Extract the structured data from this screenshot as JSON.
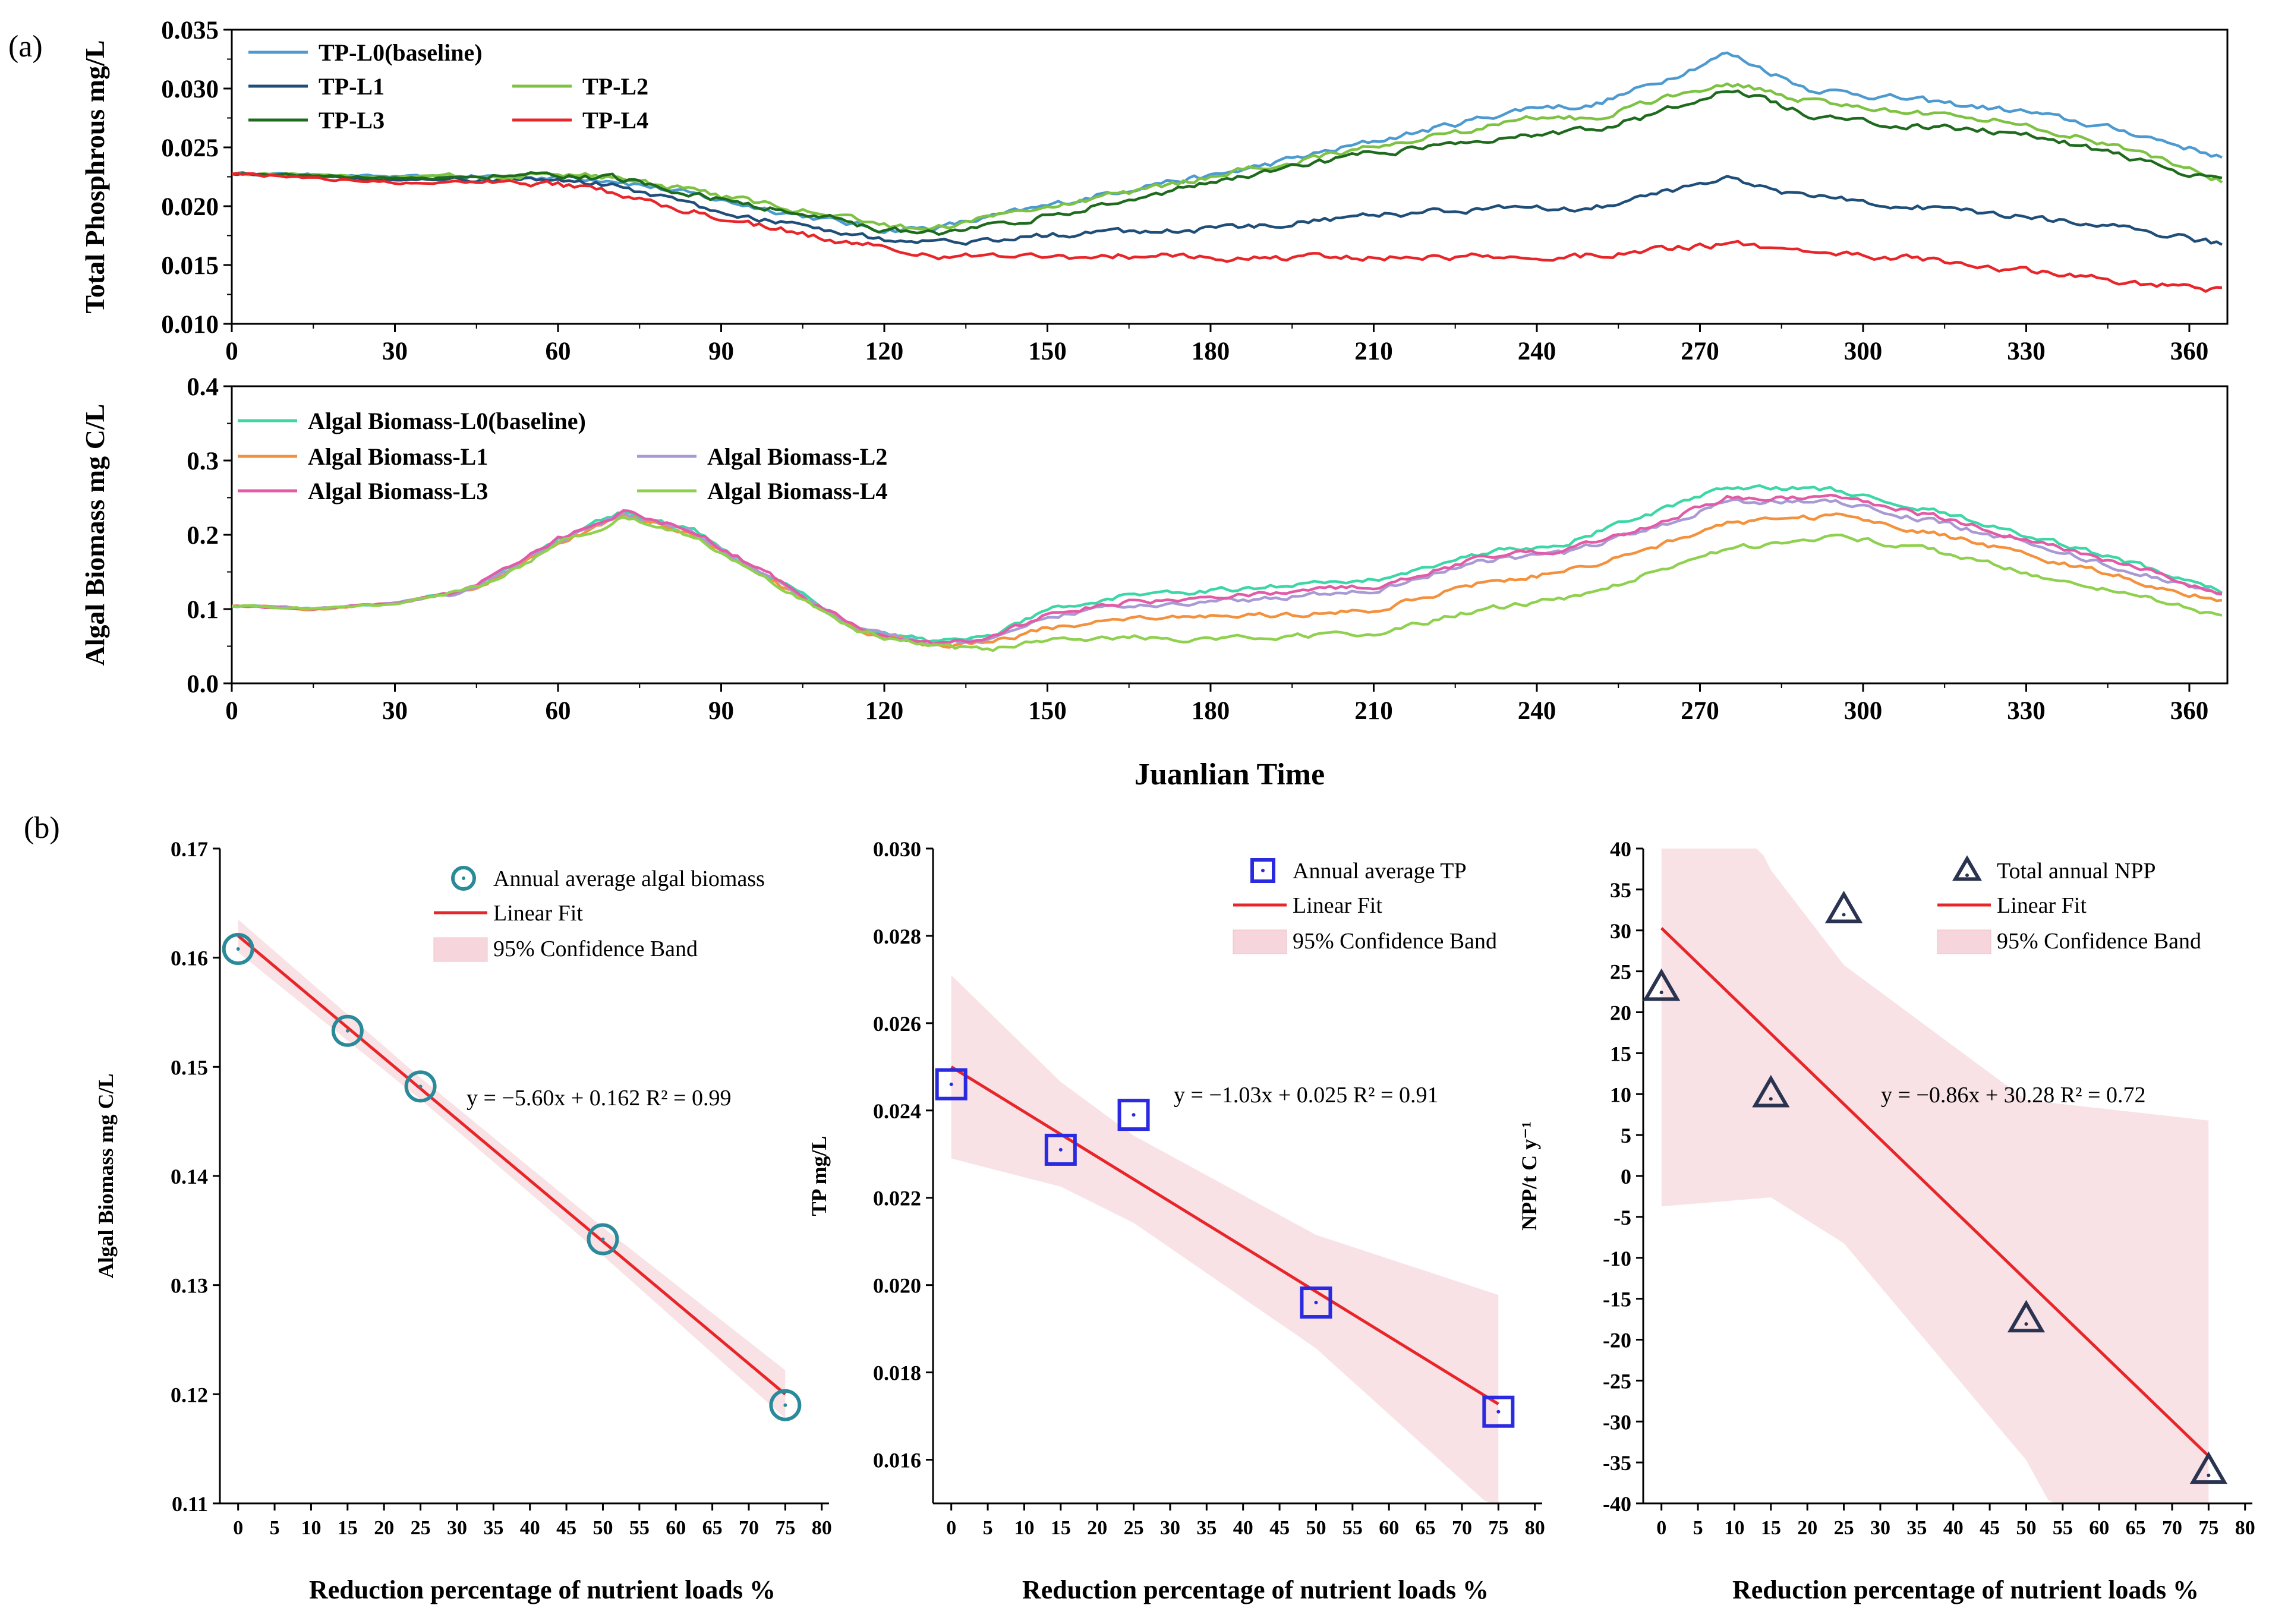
{
  "panel_labels": {
    "a": "(a)",
    "b": "(b)"
  },
  "chart_data": [
    {
      "id": "tp",
      "type": "line",
      "title": "",
      "xlabel": "",
      "ylabel": "Total Phosphrous mg/L",
      "xlim": [
        0,
        367
      ],
      "ylim": [
        0.01,
        0.035
      ],
      "xticks": [
        "0",
        "30",
        "60",
        "90",
        "120",
        "150",
        "180",
        "210",
        "240",
        "270",
        "300",
        "330",
        "360"
      ],
      "yticks": [
        "0.010",
        "0.015",
        "0.020",
        "0.025",
        "0.030",
        "0.035"
      ],
      "legend_position": "top-left",
      "series": [
        {
          "name": "TP-L0(baseline)",
          "color": "#4d9ad0",
          "x": [
            0,
            30,
            60,
            70,
            90,
            110,
            120,
            130,
            150,
            170,
            180,
            210,
            240,
            250,
            262,
            275,
            290,
            310,
            330,
            350,
            366
          ],
          "y": [
            0.0228,
            0.0225,
            0.0225,
            0.0223,
            0.0205,
            0.0188,
            0.018,
            0.0182,
            0.02,
            0.022,
            0.0225,
            0.0255,
            0.0285,
            0.0285,
            0.0305,
            0.033,
            0.03,
            0.029,
            0.028,
            0.0262,
            0.0242
          ]
        },
        {
          "name": "TP-L1",
          "color": "#1f4e79",
          "x": [
            0,
            30,
            60,
            70,
            90,
            110,
            120,
            130,
            150,
            170,
            180,
            210,
            240,
            250,
            262,
            275,
            290,
            310,
            330,
            350,
            366
          ],
          "y": [
            0.0228,
            0.0223,
            0.0222,
            0.0218,
            0.0195,
            0.018,
            0.0172,
            0.0168,
            0.0175,
            0.018,
            0.018,
            0.0192,
            0.02,
            0.0198,
            0.021,
            0.0222,
            0.0208,
            0.02,
            0.019,
            0.018,
            0.0168
          ]
        },
        {
          "name": "TP-L2",
          "color": "#7dc242",
          "x": [
            0,
            30,
            60,
            70,
            90,
            110,
            120,
            130,
            150,
            170,
            180,
            210,
            240,
            250,
            262,
            275,
            290,
            310,
            330,
            350,
            366
          ],
          "y": [
            0.0228,
            0.0225,
            0.0227,
            0.0225,
            0.0208,
            0.0192,
            0.0183,
            0.0182,
            0.02,
            0.0215,
            0.0225,
            0.025,
            0.0275,
            0.0275,
            0.029,
            0.0305,
            0.029,
            0.028,
            0.027,
            0.0248,
            0.0222
          ]
        },
        {
          "name": "TP-L3",
          "color": "#1e6b1e",
          "x": [
            0,
            30,
            60,
            70,
            90,
            110,
            120,
            130,
            150,
            170,
            180,
            210,
            240,
            250,
            262,
            275,
            290,
            310,
            330,
            350,
            366
          ],
          "y": [
            0.0228,
            0.0224,
            0.0226,
            0.0224,
            0.0205,
            0.019,
            0.018,
            0.0178,
            0.0192,
            0.021,
            0.022,
            0.0245,
            0.026,
            0.0265,
            0.0278,
            0.03,
            0.0278,
            0.0268,
            0.0262,
            0.024,
            0.022
          ]
        },
        {
          "name": "TP-L4",
          "color": "#e8262a",
          "x": [
            0,
            30,
            60,
            70,
            90,
            110,
            120,
            130,
            150,
            170,
            180,
            210,
            240,
            250,
            262,
            275,
            290,
            310,
            330,
            350,
            366
          ],
          "y": [
            0.0228,
            0.022,
            0.0218,
            0.0212,
            0.019,
            0.0172,
            0.0165,
            0.0158,
            0.0157,
            0.0158,
            0.0156,
            0.0157,
            0.0158,
            0.0158,
            0.0163,
            0.0168,
            0.0162,
            0.0155,
            0.0145,
            0.0135,
            0.0128
          ]
        }
      ]
    },
    {
      "id": "algae",
      "type": "line",
      "title": "",
      "xlabel": "Juanlian Time",
      "ylabel": "Algal Biomass mg C/L",
      "xlim": [
        0,
        367
      ],
      "ylim": [
        0.0,
        0.4
      ],
      "xticks": [
        "0",
        "30",
        "60",
        "90",
        "120",
        "150",
        "180",
        "210",
        "240",
        "270",
        "300",
        "330",
        "360"
      ],
      "yticks": [
        "0.0",
        "0.1",
        "0.2",
        "0.3",
        "0.4"
      ],
      "legend_position": "top-left",
      "series": [
        {
          "name": "Algal Biomass-L0(baseline)",
          "color": "#3dd6a6",
          "x": [
            0,
            15,
            30,
            45,
            60,
            72,
            85,
            100,
            115,
            130,
            140,
            150,
            165,
            180,
            200,
            210,
            230,
            245,
            260,
            275,
            295,
            315,
            335,
            355,
            366
          ],
          "y": [
            0.105,
            0.1,
            0.108,
            0.13,
            0.195,
            0.23,
            0.205,
            0.14,
            0.075,
            0.055,
            0.065,
            0.1,
            0.12,
            0.125,
            0.135,
            0.14,
            0.175,
            0.19,
            0.225,
            0.265,
            0.26,
            0.23,
            0.19,
            0.15,
            0.125
          ]
        },
        {
          "name": "Algal Biomass-L1",
          "color": "#f4913d",
          "x": [
            0,
            15,
            30,
            45,
            60,
            72,
            85,
            100,
            115,
            130,
            140,
            150,
            165,
            180,
            200,
            210,
            230,
            245,
            260,
            275,
            295,
            315,
            335,
            355,
            366
          ],
          "y": [
            0.105,
            0.1,
            0.108,
            0.128,
            0.19,
            0.225,
            0.2,
            0.135,
            0.072,
            0.05,
            0.055,
            0.075,
            0.085,
            0.09,
            0.095,
            0.1,
            0.135,
            0.15,
            0.18,
            0.215,
            0.225,
            0.2,
            0.165,
            0.13,
            0.11
          ]
        },
        {
          "name": "Algal Biomass-L2",
          "color": "#a89ad4",
          "x": [
            0,
            15,
            30,
            45,
            60,
            72,
            85,
            100,
            115,
            130,
            140,
            150,
            165,
            180,
            200,
            210,
            230,
            245,
            260,
            275,
            295,
            315,
            335,
            355,
            366
          ],
          "y": [
            0.105,
            0.1,
            0.108,
            0.129,
            0.192,
            0.228,
            0.203,
            0.138,
            0.073,
            0.052,
            0.06,
            0.09,
            0.105,
            0.11,
            0.12,
            0.125,
            0.165,
            0.175,
            0.205,
            0.245,
            0.245,
            0.215,
            0.18,
            0.14,
            0.118
          ]
        },
        {
          "name": "Algal Biomass-L3",
          "color": "#e35aa6",
          "x": [
            0,
            15,
            30,
            45,
            60,
            72,
            85,
            100,
            115,
            130,
            140,
            150,
            165,
            180,
            200,
            210,
            230,
            245,
            260,
            275,
            295,
            315,
            335,
            355,
            366
          ],
          "y": [
            0.105,
            0.1,
            0.108,
            0.13,
            0.194,
            0.232,
            0.205,
            0.14,
            0.074,
            0.053,
            0.062,
            0.095,
            0.11,
            0.115,
            0.125,
            0.13,
            0.17,
            0.18,
            0.21,
            0.25,
            0.25,
            0.222,
            0.185,
            0.145,
            0.12
          ]
        },
        {
          "name": "Algal Biomass-L4",
          "color": "#8fd14f",
          "x": [
            0,
            15,
            30,
            45,
            60,
            72,
            85,
            100,
            115,
            130,
            140,
            150,
            165,
            180,
            200,
            210,
            230,
            245,
            260,
            275,
            295,
            315,
            335,
            355,
            366
          ],
          "y": [
            0.105,
            0.1,
            0.107,
            0.127,
            0.188,
            0.222,
            0.198,
            0.133,
            0.07,
            0.048,
            0.045,
            0.06,
            0.062,
            0.06,
            0.065,
            0.068,
            0.1,
            0.115,
            0.145,
            0.18,
            0.2,
            0.175,
            0.14,
            0.11,
            0.092
          ]
        }
      ]
    },
    {
      "id": "b1",
      "type": "scatter",
      "xlabel": "Reduction percentage of nutrient loads %",
      "ylabel": "Algal Biomass mg C/L",
      "xlim": [
        -2.5,
        81
      ],
      "ylim": [
        0.11,
        0.17
      ],
      "xticks": [
        "0",
        "5",
        "10",
        "15",
        "20",
        "25",
        "30",
        "35",
        "40",
        "45",
        "50",
        "55",
        "60",
        "65",
        "70",
        "75",
        "80"
      ],
      "yticks": [
        "0.11",
        "0.12",
        "0.13",
        "0.14",
        "0.15",
        "0.16",
        "0.17"
      ],
      "marker": "circle",
      "color": "#2a8a9a",
      "points": {
        "x": [
          0,
          15,
          25,
          50,
          75
        ],
        "y": [
          0.1608,
          0.1533,
          0.1482,
          0.1342,
          0.119
        ]
      },
      "fit": {
        "slope": -0.00056,
        "intercept": 0.162,
        "band_halfwidth": [
          0.0015,
          0.0012,
          0.001,
          0.0013,
          0.0022
        ]
      },
      "equation_text": "y = −5.60x + 0.162    R² = 0.99",
      "legend": [
        "Annual average algal biomass",
        "Linear Fit",
        "95% Confidence Band"
      ]
    },
    {
      "id": "b2",
      "type": "scatter",
      "xlabel": "Reduction percentage of nutrient loads %",
      "ylabel": "TP mg/L",
      "xlim": [
        -2.5,
        81
      ],
      "ylim": [
        0.015,
        0.03
      ],
      "xticks": [
        "0",
        "5",
        "10",
        "15",
        "20",
        "25",
        "30",
        "35",
        "40",
        "45",
        "50",
        "55",
        "60",
        "65",
        "70",
        "75",
        "80"
      ],
      "yticks": [
        "0.016",
        "0.018",
        "0.020",
        "0.022",
        "0.024",
        "0.026",
        "0.028",
        "0.030"
      ],
      "marker": "square",
      "color": "#2a2ae0",
      "points": {
        "x": [
          0,
          15,
          25,
          50,
          75
        ],
        "y": [
          0.0246,
          0.0231,
          0.0239,
          0.0196,
          0.0171
        ]
      },
      "fit": {
        "slope": -0.000103,
        "intercept": 0.025,
        "band_halfwidth": [
          0.0021,
          0.0012,
          0.001,
          0.0013,
          0.0025
        ]
      },
      "equation_text": "y = −1.03x + 0.025    R² = 0.91",
      "legend": [
        "Annual average TP",
        "Linear Fit",
        "95% Confidence Band"
      ]
    },
    {
      "id": "b3",
      "type": "scatter",
      "xlabel": "Reduction percentage of nutrient loads %",
      "ylabel": "NPP/t C y⁻¹",
      "xlim": [
        -2.5,
        81
      ],
      "ylim": [
        -40,
        40
      ],
      "xticks": [
        "0",
        "5",
        "10",
        "15",
        "20",
        "25",
        "30",
        "35",
        "40",
        "45",
        "50",
        "55",
        "60",
        "65",
        "70",
        "75",
        "80"
      ],
      "yticks": [
        "-40",
        "-35",
        "-30",
        "-25",
        "-20",
        "-15",
        "-10",
        "-5",
        "0",
        "5",
        "10",
        "15",
        "20",
        "25",
        "30",
        "35",
        "40"
      ],
      "marker": "triangle",
      "color": "#2a3450",
      "points": {
        "x": [
          0,
          15,
          25,
          50,
          75
        ],
        "y": [
          23,
          10,
          32.5,
          -17.5,
          -36
        ]
      },
      "fit": {
        "slope": -0.86,
        "intercept": 30.28,
        "band_halfwidth": [
          34,
          20,
          17,
          22,
          41
        ]
      },
      "equation_text": "y = −0.86x + 30.28    R² = 0.72",
      "legend": [
        "Total annual NPP",
        "Linear Fit",
        "95% Confidence Band"
      ]
    }
  ]
}
